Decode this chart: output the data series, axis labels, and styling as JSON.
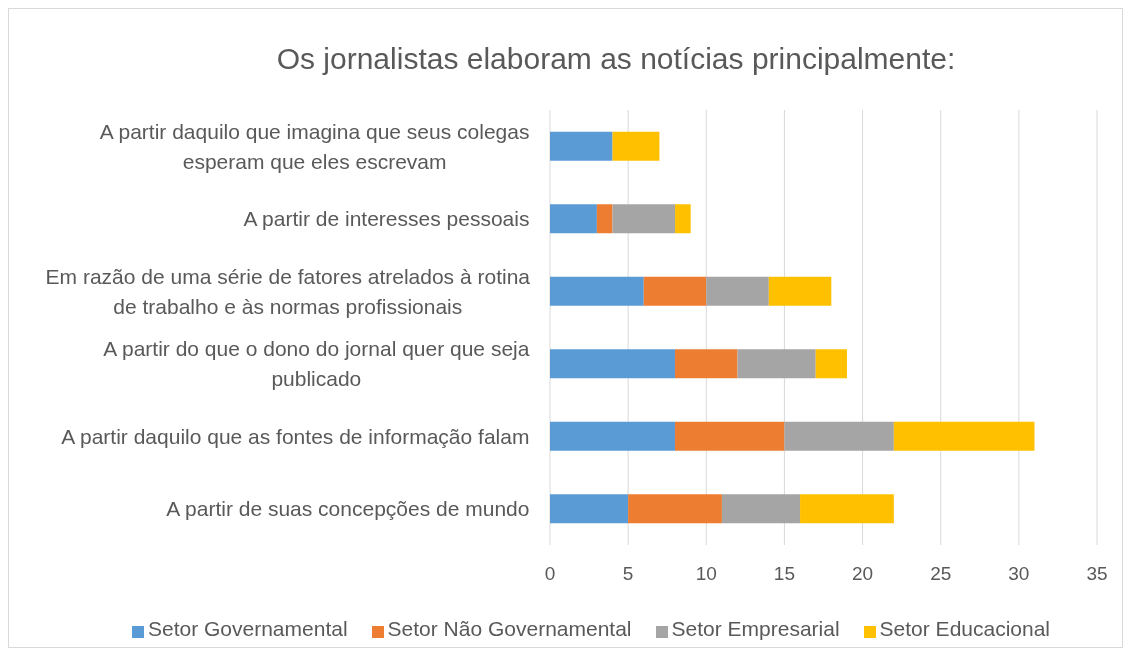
{
  "chart_data": {
    "type": "bar",
    "orientation": "horizontal",
    "stacked": true,
    "title": "Os jornalistas elaboram as notícias principalmente:",
    "categories": [
      "A partir daquilo que imagina que seus colegas esperam que eles escrevam",
      "A partir de interesses pessoais",
      "Em razão de uma série de fatores atrelados à rotina de trabalho e às normas profissionais",
      "A partir do que o dono do jornal quer que seja publicado",
      "A partir daquilo que as fontes de informação falam",
      "A partir de suas concepções de mundo"
    ],
    "series": [
      {
        "name": "Setor Governamental",
        "color": "#5b9bd5",
        "values": [
          4,
          3,
          6,
          8,
          8,
          5
        ]
      },
      {
        "name": "Setor Não Governamental",
        "color": "#ed7d31",
        "values": [
          0,
          1,
          4,
          4,
          7,
          6
        ]
      },
      {
        "name": "Setor Empresarial",
        "color": "#a5a5a5",
        "values": [
          0,
          4,
          4,
          5,
          7,
          5
        ]
      },
      {
        "name": "Setor Educacional",
        "color": "#ffc000",
        "values": [
          3,
          1,
          4,
          2,
          9,
          6
        ]
      }
    ],
    "xlim": [
      0,
      35
    ],
    "xticks": [
      0,
      5,
      10,
      15,
      20,
      25,
      30,
      35
    ],
    "grid": "x",
    "legend": "bottom"
  }
}
